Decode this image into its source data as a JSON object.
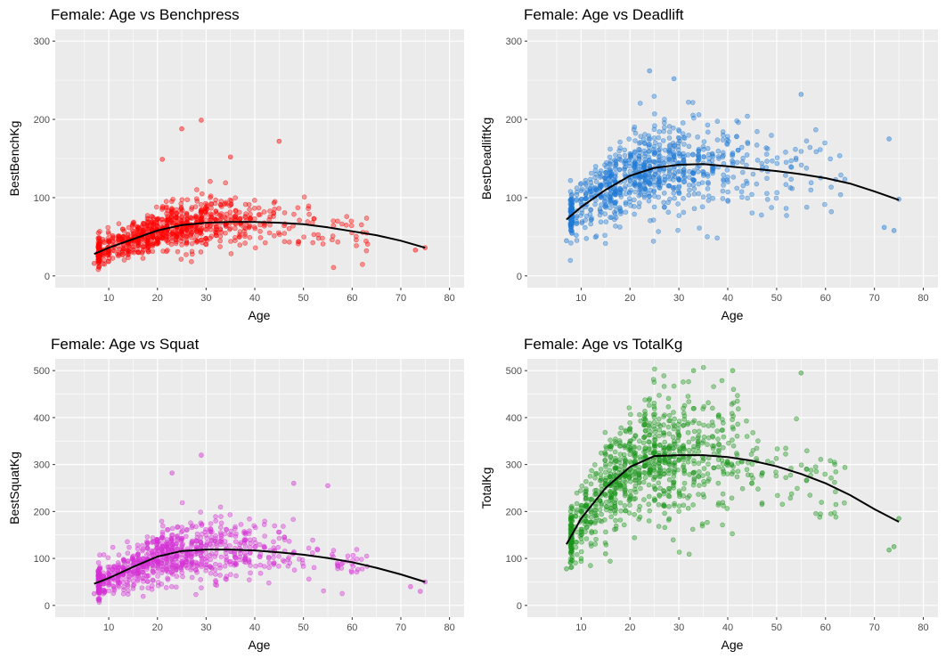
{
  "chart_data": [
    {
      "type": "scatter",
      "title": "Female: Age vs Benchpress",
      "xlabel": "Age",
      "ylabel": "BestBenchKg",
      "xlim": [
        -1,
        83
      ],
      "ylim": [
        -15,
        315
      ],
      "xticks": [
        10,
        20,
        30,
        40,
        50,
        60,
        70,
        80
      ],
      "yticks": [
        0,
        100,
        200,
        300
      ],
      "point_color": "#ff0000",
      "smooth_color": "#000000",
      "grid": true,
      "smooth": {
        "x": [
          7,
          10,
          15,
          20,
          25,
          30,
          35,
          40,
          45,
          50,
          55,
          60,
          65,
          70,
          75
        ],
        "y": [
          28,
          36,
          47,
          58,
          65,
          68,
          69,
          69,
          68,
          66,
          62,
          57,
          52,
          45,
          36
        ]
      },
      "cloud": {
        "center": 68,
        "spread": 16,
        "n": 900
      },
      "outliers": [
        {
          "x": 7,
          "y": 16
        },
        {
          "x": 9,
          "y": 30
        },
        {
          "x": 29,
          "y": 199
        },
        {
          "x": 25,
          "y": 188
        },
        {
          "x": 45,
          "y": 172
        },
        {
          "x": 35,
          "y": 152
        },
        {
          "x": 21,
          "y": 149
        },
        {
          "x": 75,
          "y": 36
        },
        {
          "x": 73,
          "y": 33
        }
      ]
    },
    {
      "type": "scatter",
      "title": "Female: Age vs Deadlift",
      "xlabel": "Age",
      "ylabel": "BestDeadliftKg",
      "xlim": [
        -1,
        83
      ],
      "ylim": [
        -15,
        315
      ],
      "xticks": [
        10,
        20,
        30,
        40,
        50,
        60,
        70,
        80
      ],
      "yticks": [
        0,
        100,
        200,
        300
      ],
      "point_color": "#1f7ad6",
      "smooth_color": "#000000",
      "grid": true,
      "smooth": {
        "x": [
          7,
          10,
          15,
          20,
          25,
          30,
          35,
          40,
          45,
          50,
          55,
          60,
          65,
          70,
          75
        ],
        "y": [
          72,
          88,
          110,
          128,
          138,
          142,
          143,
          140,
          137,
          134,
          130,
          125,
          118,
          108,
          97
        ]
      },
      "cloud": {
        "center": 138,
        "spread": 28,
        "n": 900
      },
      "outliers": [
        {
          "x": 7,
          "y": 45
        },
        {
          "x": 9,
          "y": 52
        },
        {
          "x": 24,
          "y": 262
        },
        {
          "x": 29,
          "y": 252
        },
        {
          "x": 55,
          "y": 232
        },
        {
          "x": 73,
          "y": 175
        },
        {
          "x": 74,
          "y": 58
        },
        {
          "x": 72,
          "y": 62
        },
        {
          "x": 75,
          "y": 98
        }
      ]
    },
    {
      "type": "scatter",
      "title": "Female: Age vs Squat",
      "xlabel": "Age",
      "ylabel": "BestSquatKg",
      "xlim": [
        -1,
        83
      ],
      "ylim": [
        -25,
        525
      ],
      "xticks": [
        10,
        20,
        30,
        40,
        50,
        60,
        70,
        80
      ],
      "yticks": [
        0,
        100,
        200,
        300,
        400,
        500
      ],
      "point_color": "#d62fd6",
      "smooth_color": "#000000",
      "grid": true,
      "smooth": {
        "x": [
          7,
          10,
          15,
          20,
          25,
          30,
          35,
          40,
          45,
          50,
          55,
          60,
          65,
          70,
          75
        ],
        "y": [
          46,
          58,
          82,
          104,
          116,
          119,
          119,
          117,
          113,
          108,
          101,
          92,
          80,
          66,
          50
        ]
      },
      "cloud": {
        "center": 115,
        "spread": 32,
        "n": 900
      },
      "outliers": [
        {
          "x": 7,
          "y": 25
        },
        {
          "x": 9,
          "y": 32
        },
        {
          "x": 29,
          "y": 320
        },
        {
          "x": 23,
          "y": 282
        },
        {
          "x": 48,
          "y": 260
        },
        {
          "x": 55,
          "y": 255
        },
        {
          "x": 74,
          "y": 30
        },
        {
          "x": 75,
          "y": 50
        },
        {
          "x": 72,
          "y": 40
        }
      ]
    },
    {
      "type": "scatter",
      "title": "Female: Age vs TotalKg",
      "xlabel": "Age",
      "ylabel": "TotalKg",
      "xlim": [
        -1,
        83
      ],
      "ylim": [
        -25,
        525
      ],
      "xticks": [
        10,
        20,
        30,
        40,
        50,
        60,
        70,
        80
      ],
      "yticks": [
        0,
        100,
        200,
        300,
        400,
        500
      ],
      "point_color": "#1a961a",
      "smooth_color": "#000000",
      "grid": true,
      "smooth": {
        "x": [
          7,
          10,
          15,
          20,
          25,
          30,
          35,
          40,
          45,
          50,
          55,
          60,
          65,
          70,
          75
        ],
        "y": [
          130,
          185,
          250,
          295,
          318,
          320,
          320,
          316,
          308,
          296,
          280,
          260,
          235,
          205,
          178
        ]
      },
      "cloud": {
        "center": 310,
        "spread": 65,
        "n": 1000
      },
      "outliers": [
        {
          "x": 7,
          "y": 78
        },
        {
          "x": 10,
          "y": 100
        },
        {
          "x": 15,
          "y": 110
        },
        {
          "x": 33,
          "y": 500
        },
        {
          "x": 41,
          "y": 500
        },
        {
          "x": 55,
          "y": 495
        },
        {
          "x": 73,
          "y": 118
        },
        {
          "x": 74,
          "y": 125
        },
        {
          "x": 75,
          "y": 185
        }
      ]
    }
  ]
}
